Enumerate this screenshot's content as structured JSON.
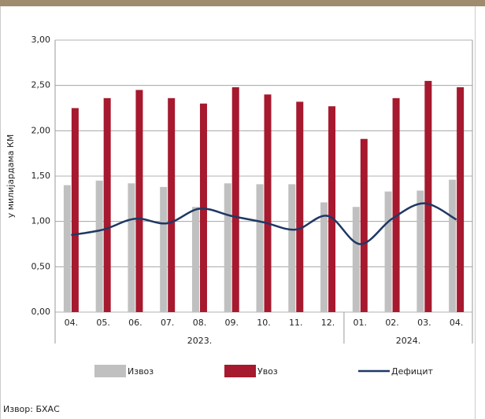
{
  "chart_data": {
    "type": "bar",
    "y_label": "у милијардама КМ",
    "groups": [
      {
        "label": "2023.",
        "categories": [
          "04.",
          "05.",
          "06.",
          "07.",
          "08.",
          "09.",
          "10.",
          "11.",
          "12."
        ]
      },
      {
        "label": "2024.",
        "categories": [
          "01.",
          "02.",
          "03.",
          "04."
        ]
      }
    ],
    "series": [
      {
        "name": "Извоз",
        "type": "bar",
        "color": "#c0c0c0",
        "values": [
          1.4,
          1.45,
          1.42,
          1.38,
          1.16,
          1.42,
          1.41,
          1.41,
          1.21,
          1.16,
          1.33,
          1.34,
          1.46
        ]
      },
      {
        "name": "Увоз",
        "type": "bar",
        "color": "#a6192e",
        "values": [
          2.25,
          2.36,
          2.45,
          2.36,
          2.3,
          2.48,
          2.4,
          2.32,
          2.27,
          1.91,
          2.36,
          2.55,
          2.48
        ]
      },
      {
        "name": "Дефицит",
        "type": "line",
        "color": "#1f3864",
        "values": [
          0.85,
          0.91,
          1.03,
          0.98,
          1.14,
          1.06,
          0.99,
          0.91,
          1.06,
          0.75,
          1.03,
          1.2,
          1.02
        ]
      }
    ],
    "ylim": [
      0,
      3
    ],
    "yticks": [
      {
        "value": 0,
        "label": "0,00"
      },
      {
        "value": 0.5,
        "label": "0,50"
      },
      {
        "value": 1,
        "label": "1,00"
      },
      {
        "value": 1.5,
        "label": "1,50"
      },
      {
        "value": 2,
        "label": "2,00"
      },
      {
        "value": 2.5,
        "label": "2,50"
      },
      {
        "value": 3,
        "label": "3,00"
      }
    ],
    "grid": true,
    "source": "Извор: БХАС"
  }
}
